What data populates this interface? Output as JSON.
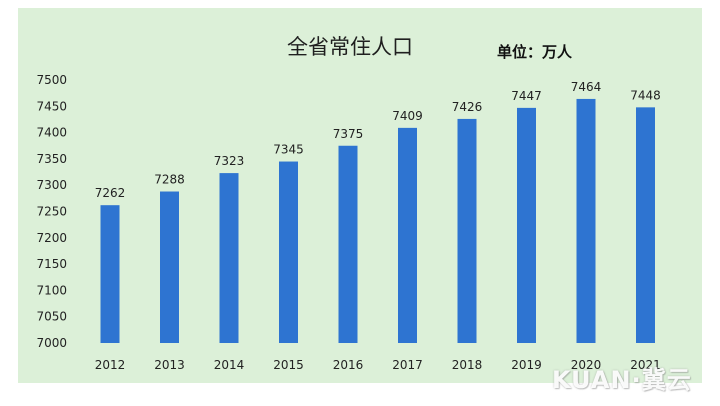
{
  "chart_data": {
    "type": "bar",
    "title": "全省常住人口",
    "unit_label": "单位：万人",
    "categories": [
      "2012",
      "2013",
      "2014",
      "2015",
      "2016",
      "2017",
      "2018",
      "2019",
      "2020",
      "2021"
    ],
    "values": [
      7262,
      7288,
      7323,
      7345,
      7375,
      7409,
      7426,
      7447,
      7464,
      7448
    ],
    "ylim": [
      7000,
      7500
    ],
    "yticks": [
      7000,
      7050,
      7100,
      7150,
      7200,
      7250,
      7300,
      7350,
      7400,
      7450,
      7500
    ],
    "grid": false,
    "bar_color": "#2e74d1",
    "background_color": "#dcf0d8"
  },
  "watermark": "KUAN·冀云"
}
